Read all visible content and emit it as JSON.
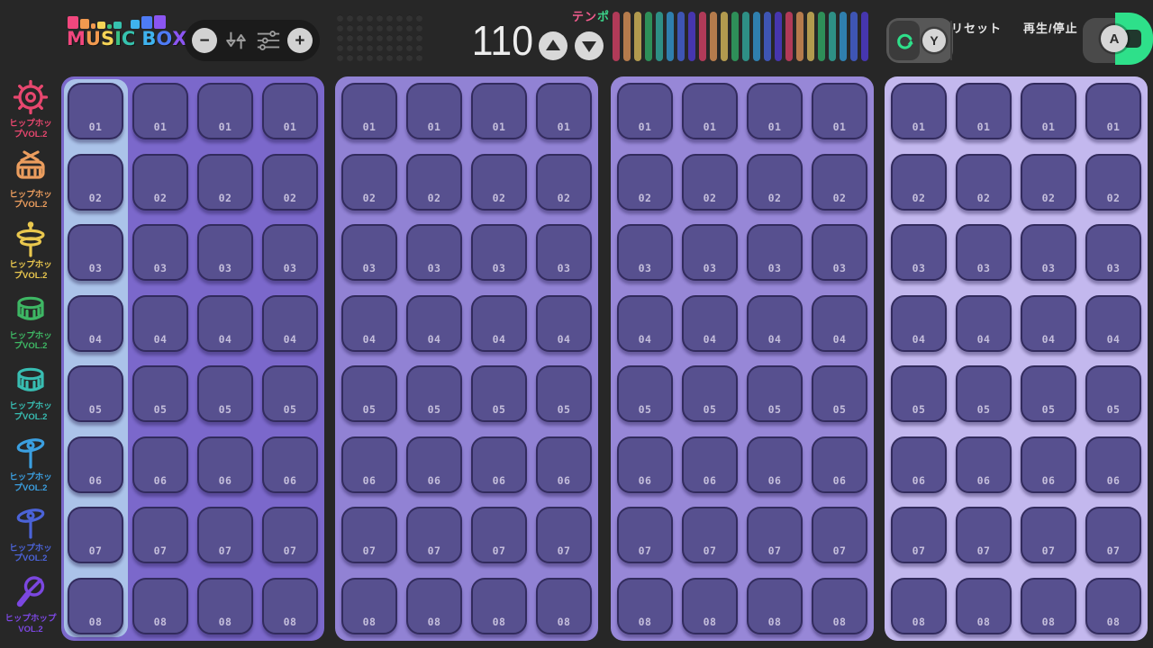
{
  "app_title": "MUSIC BOX",
  "topbar": {
    "logo": {
      "letters": [
        {
          "ch": "M",
          "color": "#f2477e"
        },
        {
          "ch": "U",
          "color": "#f2994f"
        },
        {
          "ch": "S",
          "color": "#f5d356"
        },
        {
          "ch": "I",
          "color": "#3bc183"
        },
        {
          "ch": "C",
          "color": "#36c2ae"
        },
        {
          "ch": "B",
          "color": "#3fb3ee",
          "space_before": true
        },
        {
          "ch": "O",
          "color": "#4e7bf5"
        },
        {
          "ch": "X",
          "color": "#8b55f2"
        }
      ],
      "blocks": [
        {
          "color": "#f2477e",
          "w": 12,
          "h": 14
        },
        {
          "color": "#f2994f",
          "w": 10,
          "h": 11
        },
        {
          "color": "#f2994f",
          "w": 5,
          "h": 6
        },
        {
          "color": "#f5d356",
          "w": 9,
          "h": 8
        },
        {
          "color": "#3bc183",
          "w": 5,
          "h": 5
        },
        {
          "color": "#36c2ae",
          "w": 9,
          "h": 8
        },
        {
          "color": "none",
          "w": 6,
          "h": 0
        },
        {
          "color": "#3fb3ee",
          "w": 10,
          "h": 10
        },
        {
          "color": "#4e7bf5",
          "w": 12,
          "h": 14
        },
        {
          "color": "#8b55f2",
          "w": 13,
          "h": 15
        }
      ]
    },
    "tools": {
      "minus": "−",
      "plus": "+"
    },
    "tempo": {
      "value": "110",
      "label_accent": "テン",
      "accent_color": "#f25c8e",
      "label_rest": "ポ",
      "rest_color": "#3bd68b"
    },
    "bars": {
      "palette": [
        "#b13a58",
        "#b57b4c",
        "#b29a4e",
        "#2e8f58",
        "#2e8f85",
        "#2f7fae",
        "#3e55b4",
        "#4636ae"
      ],
      "repeat": 3
    },
    "reset": {
      "label": "リセット",
      "badge": "Y",
      "icon_color": "#2ee08a"
    },
    "play": {
      "label": "再生/停止",
      "badge": "A",
      "green": "#2ee08a"
    }
  },
  "sidebar": {
    "items": [
      {
        "icon": "tom-icon",
        "color": "#e8476f",
        "label1": "ヒップホッ",
        "label2": "プVOL.2"
      },
      {
        "icon": "snare-icon",
        "color": "#eb9d5e",
        "label1": "ヒップホッ",
        "label2": "プVOL.2"
      },
      {
        "icon": "hihat-icon",
        "color": "#e9c74e",
        "label1": "ヒップホッ",
        "label2": "プVOL.2"
      },
      {
        "icon": "drum-icon",
        "color": "#3eb764",
        "label1": "ヒップホッ",
        "label2": "プVOL.2"
      },
      {
        "icon": "drum-icon",
        "color": "#38bdb2",
        "label1": "ヒップホッ",
        "label2": "プVOL.2"
      },
      {
        "icon": "cymbal-icon",
        "color": "#3b9fe0",
        "label1": "ヒップホッ",
        "label2": "プVOL.2"
      },
      {
        "icon": "cymbal-icon",
        "color": "#4b63d8",
        "label1": "ヒップホッ",
        "label2": "プVOL.2"
      },
      {
        "icon": "maraca-icon",
        "color": "#7b47e0",
        "label1": "ヒップホップ",
        "label2": "VOL.2"
      }
    ]
  },
  "sequencer": {
    "row_labels": [
      "01",
      "02",
      "03",
      "04",
      "05",
      "06",
      "07",
      "08"
    ],
    "columns_per_panel": 4,
    "pad_color": "#57508f",
    "highlight_color": "#abc3e9",
    "panels": [
      {
        "bg": "#7b68cb",
        "active_column": 0
      },
      {
        "bg": "#9182d4",
        "active_column": null
      },
      {
        "bg": "#9787d7",
        "active_column": null
      },
      {
        "bg": "#c3b8ee",
        "active_column": null
      }
    ]
  }
}
